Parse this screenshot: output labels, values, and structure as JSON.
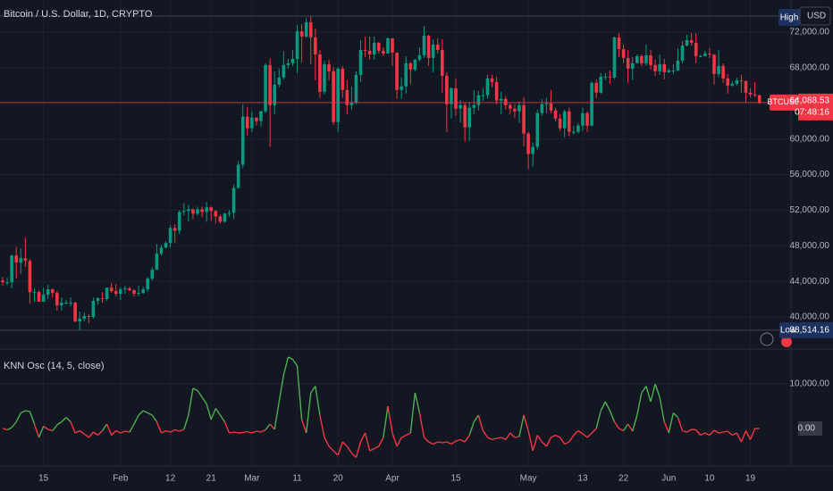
{
  "chart_data": [
    {
      "type": "candlestick",
      "title": "Bitcoin / U.S. Dollar, 1D, CRYPTO",
      "currency": "USD",
      "high_tag": "High",
      "low_tag": {
        "text": "Low",
        "value": 38514.16,
        "label": "38,514.16"
      },
      "last": {
        "symbol": "BTCUSD",
        "value": 64088.53,
        "label": "64,088.53",
        "countdown": "07:48:16"
      },
      "up_color": "#089981",
      "down_color": "#f23645",
      "grid": true,
      "ylim": [
        36490,
        75610
      ],
      "yticks": [
        {
          "value": 40000,
          "label": "40,000.00"
        },
        {
          "value": 44000,
          "label": "44,000.00"
        },
        {
          "value": 48000,
          "label": "48,000.00"
        },
        {
          "value": 52000,
          "label": "52,000.00"
        },
        {
          "value": 56000,
          "label": "56,000.00"
        },
        {
          "value": 60000,
          "label": "60,000.00"
        },
        {
          "value": 64000,
          "label": "64,000.00"
        },
        {
          "value": 68000,
          "label": "68,000.00"
        },
        {
          "value": 72000,
          "label": "72,000.00"
        }
      ],
      "categories": [
        null,
        null,
        null,
        null,
        null,
        null,
        null,
        null,
        null,
        "15",
        null,
        null,
        null,
        null,
        null,
        null,
        null,
        null,
        null,
        null,
        null,
        null,
        null,
        null,
        null,
        null,
        "Feb",
        null,
        null,
        null,
        null,
        null,
        null,
        null,
        null,
        null,
        null,
        "12",
        null,
        null,
        null,
        null,
        null,
        null,
        null,
        null,
        "21",
        null,
        null,
        null,
        null,
        null,
        null,
        null,
        null,
        "Mar",
        null,
        null,
        null,
        null,
        null,
        null,
        null,
        null,
        null,
        "11",
        null,
        null,
        null,
        null,
        null,
        null,
        null,
        null,
        "20",
        null,
        null,
        null,
        null,
        null,
        null,
        null,
        null,
        null,
        null,
        null,
        "Apr",
        null,
        null,
        null,
        null,
        null,
        null,
        null,
        null,
        null,
        null,
        null,
        null,
        null,
        "15",
        null,
        null,
        null,
        null,
        null,
        null,
        null,
        null,
        null,
        null,
        null,
        null,
        null,
        null,
        null,
        "May",
        null,
        null,
        null,
        null,
        null,
        null,
        null,
        null,
        null,
        null,
        null,
        "13",
        null,
        null,
        null,
        null,
        null,
        null,
        null,
        null,
        "22",
        null,
        null,
        null,
        null,
        null,
        null,
        null,
        null,
        null,
        "Jun",
        null,
        null,
        null,
        null,
        null,
        null,
        null,
        null,
        "10",
        null,
        null,
        null,
        null,
        null,
        null,
        null,
        null,
        "19",
        null,
        null
      ],
      "open": [
        44100,
        43900,
        43900,
        46900,
        46100,
        46600,
        46300,
        42800,
        42800,
        41700,
        42500,
        43100,
        42700,
        41300,
        41600,
        41600,
        41600,
        39500,
        39800,
        40100,
        40000,
        41800,
        42100,
        42000,
        43300,
        42900,
        42600,
        43100,
        43200,
        43000,
        42600,
        42700,
        43100,
        44300,
        45300,
        47100,
        47800,
        48300,
        50000,
        49700,
        51800,
        51900,
        52100,
        51600,
        52100,
        51800,
        52300,
        51900,
        51300,
        50700,
        51600,
        51700,
        54500,
        57100,
        62500,
        61200,
        62400,
        62000,
        63100,
        68300,
        63800,
        66100,
        66900,
        68300,
        68500,
        69000,
        72100,
        71500,
        73100,
        71400,
        69500,
        65300,
        68400,
        67600,
        61900,
        67900,
        65500,
        63800,
        64100,
        67200,
        70000,
        69900,
        69500,
        70800,
        69900,
        69600,
        71300,
        69700,
        65500,
        65900,
        68500,
        67800,
        68900,
        69400,
        71600,
        69100,
        70600,
        70000,
        67100,
        63900,
        65700,
        63400,
        63800,
        61300,
        63500,
        63800,
        64900,
        64900,
        66800,
        66400,
        64300,
        64500,
        63800,
        63400,
        63100,
        63800,
        60600,
        58300,
        59100,
        62900,
        63900,
        64000,
        63200,
        62300,
        61200,
        63100,
        60800,
        60800,
        61500,
        62900,
        61500,
        66300,
        65200,
        67000,
        67000,
        66900,
        71400,
        70100,
        69100,
        67900,
        68500,
        69300,
        68500,
        69400,
        68300,
        67600,
        68400,
        67500,
        67700,
        67700,
        68800,
        70500,
        71100,
        70800,
        69300,
        69300,
        69600,
        69500,
        67300,
        68200,
        66800,
        66000,
        66200,
        66600,
        66500,
        65200,
        65000,
        64900
      ],
      "high": [
        44500,
        44400,
        47000,
        47900,
        47700,
        48900,
        46500,
        43200,
        43000,
        43300,
        43600,
        43200,
        42900,
        42200,
        41900,
        42200,
        41700,
        40600,
        40500,
        40300,
        42200,
        42200,
        42800,
        43300,
        43800,
        43700,
        43300,
        43500,
        43400,
        43100,
        43500,
        43400,
        44500,
        45600,
        48200,
        48100,
        48500,
        50300,
        50400,
        52000,
        52800,
        52600,
        52200,
        52400,
        52400,
        52900,
        52400,
        52000,
        51500,
        51700,
        52000,
        54900,
        57500,
        63900,
        63600,
        63100,
        62400,
        63200,
        68500,
        69000,
        67600,
        67900,
        69900,
        69000,
        70000,
        72800,
        72900,
        73600,
        73800,
        72400,
        70000,
        68800,
        68900,
        68100,
        68100,
        68200,
        66600,
        65900,
        67600,
        71100,
        71500,
        71500,
        71500,
        70900,
        70300,
        71400,
        71300,
        69700,
        66900,
        69300,
        68700,
        69000,
        70300,
        72700,
        71700,
        71200,
        71300,
        71200,
        67500,
        65800,
        66800,
        64400,
        64100,
        64100,
        65500,
        65400,
        65700,
        67200,
        67200,
        67000,
        65300,
        64800,
        64000,
        63900,
        64200,
        64700,
        60800,
        59600,
        63300,
        64500,
        64600,
        65500,
        63500,
        62800,
        63300,
        63500,
        61500,
        61800,
        63500,
        63100,
        66500,
        66700,
        67400,
        67400,
        67700,
        71500,
        71900,
        70600,
        70000,
        69200,
        69500,
        69500,
        70600,
        70000,
        68900,
        69500,
        69000,
        67900,
        68400,
        70200,
        71000,
        71700,
        71900,
        71900,
        69500,
        69900,
        70200,
        69500,
        70000,
        68500,
        67300,
        66500,
        66900,
        67200,
        66600,
        65700,
        66400,
        65000
      ],
      "low": [
        43500,
        43600,
        43200,
        44300,
        44800,
        45600,
        41500,
        41700,
        41700,
        41700,
        42000,
        42200,
        40700,
        40700,
        41400,
        41200,
        39400,
        38500,
        39500,
        39300,
        39800,
        41400,
        41600,
        41800,
        42700,
        42300,
        41900,
        42600,
        42900,
        42300,
        42300,
        42600,
        42800,
        44100,
        45300,
        46900,
        47700,
        47800,
        48300,
        49300,
        51400,
        50700,
        51000,
        51400,
        51200,
        50700,
        50800,
        50500,
        50500,
        50600,
        51300,
        51000,
        54400,
        56700,
        60400,
        60800,
        61500,
        61400,
        62900,
        59100,
        62800,
        65800,
        66700,
        67900,
        68200,
        67400,
        68600,
        71400,
        68400,
        66600,
        64600,
        65000,
        66600,
        61600,
        60800,
        64600,
        62800,
        63300,
        63900,
        66400,
        69200,
        68900,
        68900,
        69600,
        69300,
        69600,
        68200,
        64500,
        64500,
        65100,
        66200,
        67600,
        68700,
        69100,
        68200,
        67500,
        69600,
        65200,
        60800,
        62300,
        62600,
        61800,
        59700,
        59800,
        62800,
        63200,
        64300,
        64500,
        65800,
        63900,
        62800,
        63300,
        62800,
        62400,
        61800,
        59200,
        56600,
        56900,
        58800,
        62600,
        62900,
        62900,
        62000,
        60900,
        60200,
        60300,
        60500,
        60600,
        60900,
        60800,
        61400,
        64600,
        65100,
        66600,
        66200,
        66700,
        69200,
        68500,
        66300,
        66600,
        68500,
        68200,
        68200,
        67800,
        67100,
        67200,
        66700,
        67400,
        67300,
        67600,
        68500,
        70400,
        70500,
        68500,
        69200,
        69300,
        69100,
        66100,
        66900,
        66300,
        65100,
        65900,
        66000,
        65200,
        64100,
        64700,
        64700,
        63900
      ],
      "close": [
        43900,
        43900,
        46900,
        46100,
        46600,
        46300,
        42800,
        42800,
        41700,
        42500,
        43100,
        42700,
        41300,
        41600,
        41600,
        41600,
        39500,
        39800,
        40100,
        40000,
        41800,
        42100,
        42000,
        43300,
        42900,
        42600,
        43100,
        43200,
        43000,
        42600,
        42700,
        43100,
        44300,
        45300,
        47100,
        47800,
        48300,
        50000,
        49700,
        51800,
        51900,
        52100,
        51600,
        52100,
        51800,
        52300,
        51900,
        51300,
        50700,
        51600,
        51700,
        54500,
        57100,
        62500,
        61200,
        62400,
        62000,
        63100,
        68300,
        63800,
        66100,
        66900,
        68300,
        68500,
        69000,
        72100,
        71500,
        73100,
        71400,
        69500,
        65300,
        68400,
        67600,
        61900,
        67900,
        65500,
        63800,
        64100,
        67200,
        70000,
        69900,
        69500,
        70800,
        69900,
        69600,
        71300,
        69700,
        65500,
        65900,
        68500,
        67800,
        68900,
        69400,
        71600,
        69100,
        70600,
        70000,
        67100,
        63900,
        65700,
        63400,
        63800,
        61300,
        63500,
        63800,
        64900,
        64900,
        66800,
        66400,
        64300,
        64500,
        63800,
        63400,
        63100,
        63800,
        60600,
        58300,
        59100,
        62900,
        63900,
        64000,
        63200,
        62300,
        61200,
        63100,
        60800,
        60800,
        61500,
        62900,
        61500,
        66300,
        65200,
        67000,
        67000,
        66900,
        71400,
        70100,
        69100,
        67900,
        68500,
        69300,
        68500,
        69400,
        68300,
        67600,
        68400,
        67500,
        67700,
        67700,
        68800,
        70500,
        71100,
        70800,
        69300,
        69300,
        69600,
        69500,
        67300,
        68200,
        66800,
        66000,
        66200,
        66600,
        66500,
        65200,
        65000,
        64900,
        64088.53
      ]
    },
    {
      "type": "line",
      "title": "KNN Osc (14, 5, close)",
      "up_color": "#4caf50",
      "down_color": "#f23645",
      "grid": true,
      "ylim": [
        -8400,
        17600
      ],
      "yticks": [
        {
          "value": 10000,
          "label": "10,000.00"
        },
        {
          "value": 0,
          "label": "0.00"
        }
      ],
      "values": [
        0,
        -300,
        200,
        1500,
        3500,
        4000,
        3800,
        1000,
        -2000,
        500,
        -200,
        -500,
        800,
        1500,
        2500,
        1500,
        -1000,
        -500,
        -1200,
        -2000,
        -800,
        -1500,
        -500,
        1000,
        -1500,
        -500,
        -1000,
        -600,
        -800,
        1000,
        3000,
        4000,
        3500,
        3000,
        1500,
        -1000,
        -500,
        -800,
        -300,
        -600,
        -200,
        3000,
        9000,
        8500,
        7000,
        5500,
        2000,
        4500,
        3000,
        1500,
        -1000,
        -800,
        -1000,
        -900,
        -700,
        -1000,
        -600,
        -800,
        -300,
        1000,
        -200,
        6000,
        12000,
        16000,
        15500,
        14000,
        2000,
        -1000,
        8000,
        9500,
        3000,
        -2000,
        -4000,
        -5000,
        -6000,
        -3000,
        -4000,
        -5500,
        -6500,
        -3000,
        -1000,
        -5000,
        -4500,
        -4000,
        -2000,
        5000,
        -1000,
        -4000,
        -2000,
        -1500,
        -1000,
        8000,
        3500,
        -2000,
        -3000,
        -3500,
        -3000,
        -3200,
        -3000,
        -3500,
        -2800,
        -2500,
        -3000,
        -1500,
        1500,
        3000,
        -500,
        -2000,
        -2500,
        -2200,
        -2000,
        -2500,
        -1000,
        -2000,
        -1800,
        3000,
        -500,
        -5000,
        -1500,
        -3000,
        -4000,
        -2000,
        -1500,
        -2000,
        -3500,
        -3000,
        -1500,
        -500,
        -1200,
        -2000,
        -1000,
        0,
        4000,
        6000,
        4000,
        1500,
        0,
        -500,
        1000,
        -600,
        3000,
        8000,
        9500,
        6000,
        10000,
        7000,
        1500,
        -1000,
        3500,
        2500,
        -500,
        -800,
        -200,
        -300,
        -1500,
        -1000,
        -1500,
        -400,
        -1000,
        -800,
        -600,
        -1500,
        -1000,
        -3000,
        -500,
        -2500,
        0,
        0
      ]
    }
  ]
}
